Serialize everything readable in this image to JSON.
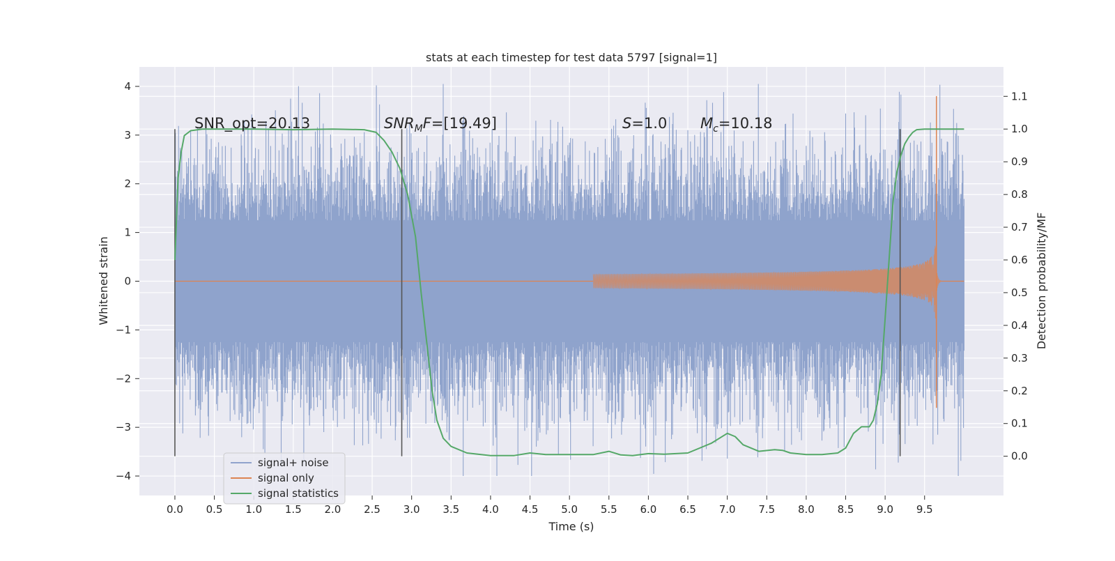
{
  "chart_data": {
    "type": "line",
    "title": "stats at each timestep for test data 5797 [signal=1]",
    "xlabel": "Time (s)",
    "ylabel": "Whitened strain",
    "ylabel_right": "Detection probability/MF",
    "xlim": [
      -0.45,
      10.5
    ],
    "ylim": [
      -4.4,
      4.4
    ],
    "ylim_right": [
      -0.12,
      1.19
    ],
    "x_ticks": [
      "0.0",
      "0.5",
      "1.0",
      "1.5",
      "2.0",
      "2.5",
      "3.0",
      "3.5",
      "4.0",
      "4.5",
      "5.0",
      "5.5",
      "6.0",
      "6.5",
      "7.0",
      "7.5",
      "8.0",
      "8.5",
      "9.0",
      "9.5"
    ],
    "x_tick_values": [
      0.0,
      0.5,
      1.0,
      1.5,
      2.0,
      2.5,
      3.0,
      3.5,
      4.0,
      4.5,
      5.0,
      5.5,
      6.0,
      6.5,
      7.0,
      7.5,
      8.0,
      8.5,
      9.0,
      9.5
    ],
    "y_ticks": [
      "4",
      "3",
      "2",
      "1",
      "0",
      "−1",
      "−2",
      "−3",
      "−4"
    ],
    "y_tick_values": [
      4,
      3,
      2,
      1,
      0,
      -1,
      -2,
      -3,
      -4
    ],
    "y_ticks_right": [
      "1.1",
      "1.0",
      "0.9",
      "0.8",
      "0.7",
      "0.6",
      "0.5",
      "0.4",
      "0.3",
      "0.2",
      "0.1",
      "0.0"
    ],
    "y_tick_values_right": [
      1.1,
      1.0,
      0.9,
      0.8,
      0.7,
      0.6,
      0.5,
      0.4,
      0.3,
      0.2,
      0.1,
      0.0
    ],
    "grid": true,
    "legend_position": "bottom-left",
    "colors": {
      "background": "#eaeaf2",
      "grid": "#ffffff",
      "noise": "#8fa3cc",
      "signal": "#dd8452",
      "stats": "#55a868",
      "vline": "#555555"
    },
    "annotations": {
      "snr_opt": "SNR_opt=20.13",
      "snr_mf_sym": "SNR",
      "snr_mf_sub": "M",
      "snr_mf_f": "F",
      "snr_mf_val": "=[19.49]",
      "s_sym": "S",
      "s_val": "=1.0",
      "mc_sym": "M",
      "mc_sub": "c",
      "mc_val": "=10.18"
    },
    "vertical_markers_s": [
      0.0,
      2.875,
      9.19
    ],
    "series": [
      {
        "name": "signal+ noise",
        "kind": "noise",
        "x_range": [
          0.0,
          10.0
        ],
        "envelope_upper": 2.6,
        "envelope_lower": -2.6,
        "peak_max": 4.05,
        "peak_min": -4.0
      },
      {
        "name": "signal only",
        "kind": "chirp",
        "x_start": 5.3,
        "x_merger": 9.65,
        "peak_max": 3.8,
        "peak_min": -2.6
      },
      {
        "name": "signal statistics",
        "kind": "line",
        "axis": "right",
        "x": [
          0.0,
          0.04,
          0.08,
          0.12,
          0.2,
          0.35,
          0.6,
          1.0,
          1.5,
          2.0,
          2.4,
          2.55,
          2.65,
          2.75,
          2.85,
          2.95,
          3.05,
          3.12,
          3.2,
          3.26,
          3.32,
          3.4,
          3.5,
          3.7,
          4.0,
          4.3,
          4.5,
          4.7,
          5.0,
          5.3,
          5.5,
          5.65,
          5.8,
          6.0,
          6.2,
          6.5,
          6.8,
          7.0,
          7.1,
          7.2,
          7.4,
          7.6,
          7.7,
          7.8,
          8.0,
          8.2,
          8.4,
          8.5,
          8.6,
          8.7,
          8.8,
          8.85,
          8.9,
          8.95,
          9.0,
          9.05,
          9.1,
          9.15,
          9.2,
          9.25,
          9.3,
          9.35,
          9.4,
          9.5,
          9.6,
          9.7,
          10.0
        ],
        "y": [
          0.6,
          0.85,
          0.93,
          0.98,
          0.995,
          1.0,
          1.0,
          1.0,
          0.998,
          1.0,
          0.998,
          0.99,
          0.965,
          0.93,
          0.88,
          0.8,
          0.67,
          0.5,
          0.33,
          0.2,
          0.11,
          0.055,
          0.03,
          0.01,
          0.002,
          0.002,
          0.01,
          0.005,
          0.005,
          0.005,
          0.015,
          0.004,
          0.002,
          0.008,
          0.006,
          0.01,
          0.04,
          0.07,
          0.06,
          0.035,
          0.015,
          0.02,
          0.018,
          0.01,
          0.005,
          0.005,
          0.01,
          0.025,
          0.07,
          0.09,
          0.09,
          0.11,
          0.16,
          0.25,
          0.42,
          0.6,
          0.78,
          0.87,
          0.92,
          0.955,
          0.975,
          0.99,
          0.998,
          1.0,
          1.0,
          1.0,
          1.0
        ]
      }
    ]
  }
}
